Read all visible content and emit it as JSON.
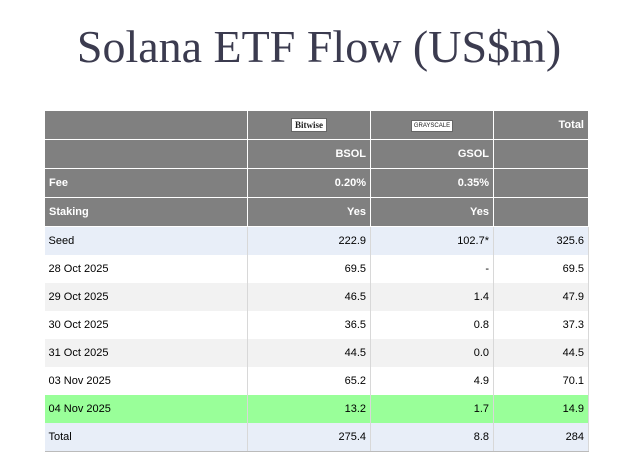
{
  "title": "Solana ETF Flow (US$m)",
  "table": {
    "header": [
      [
        null,
        "Bitwise",
        "GRAYSCALE",
        "Total"
      ],
      [
        null,
        "BSOL",
        "GSOL",
        null
      ],
      [
        "Fee",
        "0.20%",
        "0.35%",
        null
      ],
      [
        "Staking",
        "Yes",
        "Yes",
        null
      ]
    ],
    "rows": [
      [
        "Seed",
        "222.9",
        "102.7*",
        "325.6"
      ],
      [
        "28 Oct 2025",
        "69.5",
        "-",
        "69.5"
      ],
      [
        "29 Oct 2025",
        "46.5",
        "1.4",
        "47.9"
      ],
      [
        "30 Oct 2025",
        "36.5",
        "0.8",
        "37.3"
      ],
      [
        "31 Oct 2025",
        "44.5",
        "0.0",
        "44.5"
      ],
      [
        "03 Nov 2025",
        "65.2",
        "4.9",
        "70.1"
      ],
      [
        "04 Nov 2025",
        "13.2",
        "1.7",
        "14.9"
      ],
      [
        "Total",
        "275.4",
        "8.8",
        "284"
      ]
    ]
  }
}
